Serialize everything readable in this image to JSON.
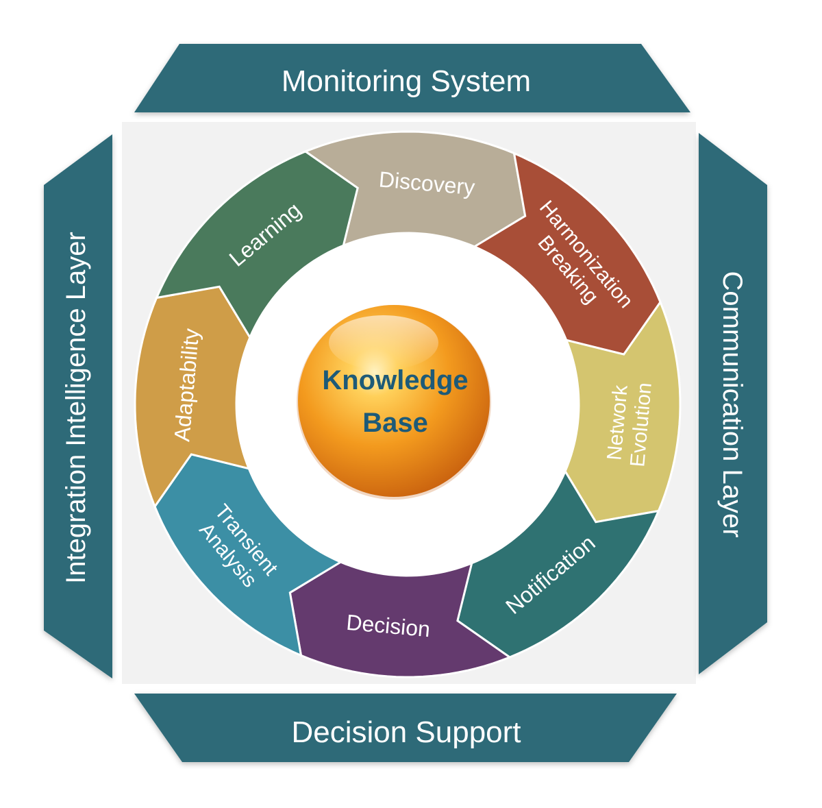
{
  "frame": {
    "top": "Monitoring System",
    "bottom": "Decision Support",
    "left": "Integration Intelligence Layer",
    "right": "Communication Layer"
  },
  "center": {
    "line1": "Knowledge",
    "line2": "Base"
  },
  "segments": [
    {
      "id": "discovery",
      "lines": [
        "Discovery"
      ],
      "color": "#b8ad98"
    },
    {
      "id": "harmonization-breaking",
      "lines": [
        "Harmonization",
        "Breaking"
      ],
      "color": "#a84e37"
    },
    {
      "id": "network-evolution",
      "lines": [
        "Network",
        "Evolution"
      ],
      "color": "#d4c56f"
    },
    {
      "id": "notification",
      "lines": [
        "Notification"
      ],
      "color": "#2f7272"
    },
    {
      "id": "decision",
      "lines": [
        "Decision"
      ],
      "color": "#643a6e"
    },
    {
      "id": "transient-analysis",
      "lines": [
        "Transient",
        "Analysis"
      ],
      "color": "#3c8fa5"
    },
    {
      "id": "adaptability",
      "lines": [
        "Adaptability"
      ],
      "color": "#cf9d48"
    },
    {
      "id": "learning",
      "lines": [
        "Learning"
      ],
      "color": "#4a7a5c"
    }
  ],
  "colors": {
    "frame_fill": "#2d6b78",
    "frame_text": "#ffffff",
    "segment_text": "#ffffff",
    "center_text": "#1d5a78",
    "center_sphere": "#f39a1e"
  }
}
